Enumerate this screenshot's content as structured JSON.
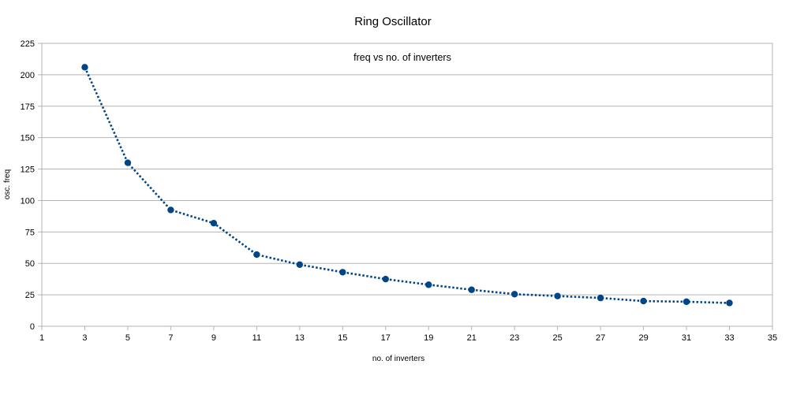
{
  "chart_data": {
    "type": "line",
    "title": "Ring Oscillator",
    "subtitle": "freq vs no. of inverters",
    "xlabel": "no. of inverters",
    "ylabel": "osc. freq",
    "xlim": [
      1,
      35
    ],
    "ylim": [
      0,
      225
    ],
    "x_ticks": [
      1,
      3,
      5,
      7,
      9,
      11,
      13,
      15,
      17,
      19,
      21,
      23,
      25,
      27,
      29,
      31,
      33,
      35
    ],
    "y_ticks": [
      0,
      25,
      50,
      75,
      100,
      125,
      150,
      175,
      200,
      225
    ],
    "grid": true,
    "legend": "none",
    "colors": {
      "series": "#004586",
      "grid": "#b3b3b3",
      "axis": "#b3b3b3"
    },
    "line_style": "dotted",
    "series": [
      {
        "x": [
          3,
          5,
          7,
          9,
          11,
          13,
          15,
          17,
          19,
          21,
          23,
          25,
          27,
          29,
          31,
          33
        ],
        "values": [
          206,
          130,
          92.5,
          82,
          57,
          49,
          43,
          37.5,
          33,
          29,
          25.5,
          24,
          22.5,
          20,
          19.5,
          18.5
        ]
      }
    ]
  }
}
